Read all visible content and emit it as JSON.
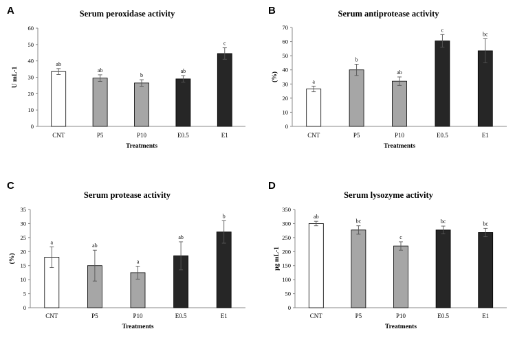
{
  "chart_data": [
    {
      "panel": "A",
      "type": "bar",
      "title": "Serum peroxidase activity",
      "xlabel": "Treatments",
      "ylabel": "U mL-1",
      "ylim": [
        0,
        60
      ],
      "yticks": [
        0,
        10,
        20,
        30,
        40,
        50,
        60
      ],
      "categories": [
        "CNT",
        "P5",
        "P10",
        "E0.5",
        "E1"
      ],
      "values": [
        33.5,
        29.5,
        26.5,
        29,
        44.5
      ],
      "errors": [
        1.8,
        2.0,
        2.0,
        2.0,
        3.5
      ],
      "significance": [
        "ab",
        "ab",
        "b",
        "ab",
        "c"
      ],
      "fills": [
        "#ffffff",
        "#a6a6a6",
        "#a6a6a6",
        "#262626",
        "#262626"
      ]
    },
    {
      "panel": "B",
      "type": "bar",
      "title": "Serum antiprotease activity",
      "xlabel": "Treatments",
      "ylabel": "(%)",
      "ylim": [
        0,
        70
      ],
      "yticks": [
        0,
        10,
        20,
        30,
        40,
        50,
        60,
        70
      ],
      "categories": [
        "CNT",
        "P5",
        "P10",
        "E0.5",
        "E1"
      ],
      "values": [
        26.5,
        40,
        32,
        60.5,
        53.5
      ],
      "errors": [
        2.0,
        4.0,
        3.0,
        4.5,
        8.5
      ],
      "significance": [
        "a",
        "b",
        "ab",
        "c",
        "bc"
      ],
      "fills": [
        "#ffffff",
        "#a6a6a6",
        "#a6a6a6",
        "#262626",
        "#262626"
      ]
    },
    {
      "panel": "C",
      "type": "bar",
      "title": "Serum protease activity",
      "xlabel": "Treatments",
      "ylabel": "(%)",
      "ylim": [
        0,
        35
      ],
      "yticks": [
        0,
        5,
        10,
        15,
        20,
        25,
        30,
        35
      ],
      "categories": [
        "CNT",
        "P5",
        "P10",
        "E0.5",
        "E1"
      ],
      "values": [
        18,
        15,
        12.5,
        18.5,
        27
      ],
      "errors": [
        3.7,
        5.5,
        2.3,
        5.0,
        4.0
      ],
      "significance": [
        "a",
        "ab",
        "a",
        "ab",
        "b"
      ],
      "fills": [
        "#ffffff",
        "#a6a6a6",
        "#a6a6a6",
        "#262626",
        "#262626"
      ]
    },
    {
      "panel": "D",
      "type": "bar",
      "title": "Serum lysozyme activity",
      "xlabel": "Treatments",
      "ylabel": "µg mL-1",
      "ylim": [
        0,
        350
      ],
      "yticks": [
        0,
        50,
        100,
        150,
        200,
        250,
        300,
        350
      ],
      "categories": [
        "CNT",
        "P5",
        "P10",
        "E0.5",
        "E1"
      ],
      "values": [
        300,
        277,
        220,
        277,
        268
      ],
      "errors": [
        8,
        15,
        15,
        14,
        15
      ],
      "significance": [
        "ab",
        "bc",
        "c",
        "bc",
        "bc"
      ],
      "fills": [
        "#ffffff",
        "#a6a6a6",
        "#a6a6a6",
        "#262626",
        "#262626"
      ]
    }
  ]
}
